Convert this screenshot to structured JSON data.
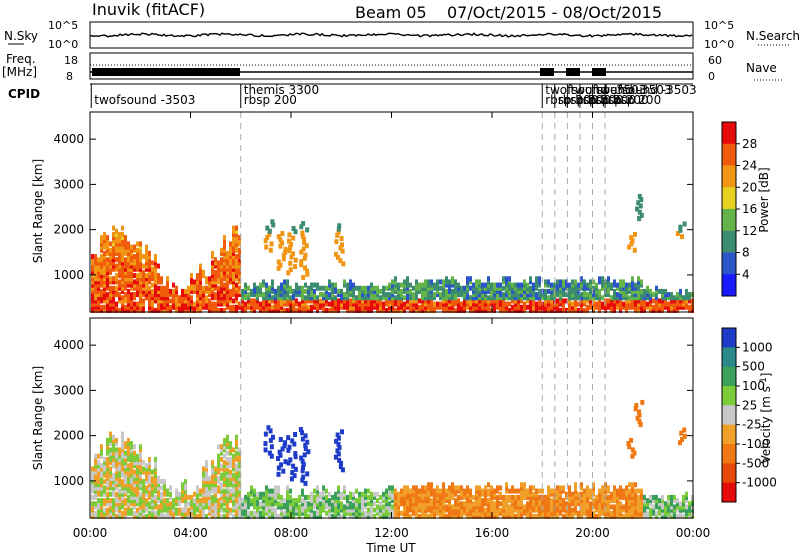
{
  "header": {
    "station": "Inuvik (fitACF)",
    "beam": "Beam 05",
    "date_range": "07/Oct/2015 - 08/Oct/2015"
  },
  "noise_panel": {
    "left_label": "N.Sky",
    "right_label": "N.Search",
    "left_ticks": [
      "10^5",
      "10^0"
    ],
    "right_ticks": [
      "10^5",
      "10^0"
    ]
  },
  "freq_panel": {
    "left_label_top": "Freq.",
    "left_label_unit": "[MHz]",
    "right_label": "Nave",
    "left_ticks": [
      "18",
      "8"
    ],
    "right_ticks": [
      "60",
      "0"
    ]
  },
  "cpid_panel": {
    "label": "CPID",
    "entries": [
      {
        "time_hr": 0.05,
        "line1": "",
        "line2": "twofsound -3503"
      },
      {
        "time_hr": 6.0,
        "line1": "themis 3300",
        "line2": "rbsp 200"
      },
      {
        "time_hr": 18.0,
        "line1": "twofsound -3503",
        "line2": "rbsp 200"
      },
      {
        "time_hr": 18.5,
        "line1": "",
        "line2": "rbsp 200"
      },
      {
        "time_hr": 19.0,
        "line1": "twofsound -3503",
        "line2": "rbsp 200"
      },
      {
        "time_hr": 19.5,
        "line1": "",
        "line2": "rbsp 200"
      },
      {
        "time_hr": 20.0,
        "line1": "twofsound -3503",
        "line2": "rbsp 200"
      },
      {
        "time_hr": 20.5,
        "line1": "",
        "line2": "rbsp 200"
      }
    ]
  },
  "x_axis": {
    "label": "Time UT",
    "ticks": [
      "00:00",
      "04:00",
      "08:00",
      "12:00",
      "16:00",
      "20:00",
      "00:00"
    ],
    "range_hr": [
      0,
      24
    ]
  },
  "chart_data": [
    {
      "type": "heatmap",
      "name": "power",
      "ylabel": "Slant Range [km]",
      "y_ticks": [
        "1000",
        "2000",
        "3000",
        "4000"
      ],
      "ylim": [
        180,
        4600
      ],
      "colorbar_label": "Power [dB]",
      "colorbar_ticks": [
        "4",
        "8",
        "12",
        "16",
        "20",
        "24",
        "28"
      ],
      "colors": [
        "#1a1aff",
        "#2b55c8",
        "#3c8c70",
        "#64b44a",
        "#e6d21e",
        "#f09614",
        "#f05a0a",
        "#e60a0a"
      ],
      "vertical_markers_hr": [
        6.0,
        18.0,
        18.5,
        19.0,
        19.5,
        20.0,
        20.5
      ]
    },
    {
      "type": "heatmap",
      "name": "velocity",
      "ylabel": "Slant Range [km]",
      "y_ticks": [
        "1000",
        "2000",
        "3000",
        "4000"
      ],
      "ylim": [
        180,
        4600
      ],
      "colorbar_label": "Velocity [m s^-1]",
      "colorbar_ticks": [
        "1000",
        "500",
        "100",
        "25",
        "-25",
        "-100",
        "-500",
        "-1000"
      ],
      "colors": [
        "#1e3cc8",
        "#2a8a8a",
        "#3aa05a",
        "#7ccc3a",
        "#c8c8c8",
        "#f0a028",
        "#f07814",
        "#e64a0a",
        "#e60a0a"
      ],
      "vertical_markers_hr": [
        6.0,
        18.0,
        18.5,
        19.0,
        19.5,
        20.0,
        20.5
      ]
    }
  ]
}
